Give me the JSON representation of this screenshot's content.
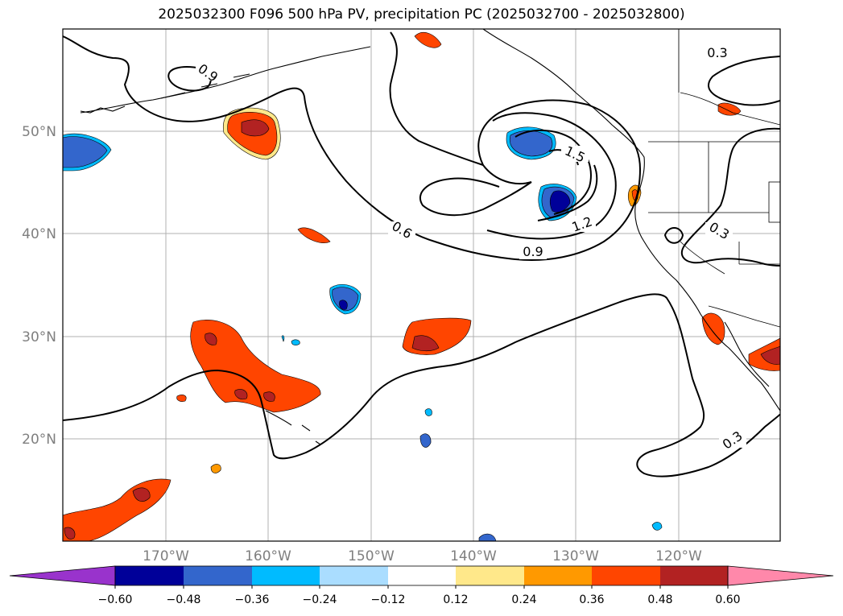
{
  "title": "2025032300 F096 500 hPa PV, precipitation PC (2025032700 - 2025032800)",
  "map": {
    "lat_labels": [
      "50°N",
      "40°N",
      "30°N",
      "20°N"
    ],
    "lon_labels": [
      "170°W",
      "160°W",
      "150°W",
      "140°W",
      "130°W",
      "120°W"
    ],
    "contour_labels": [
      "0.9",
      "0.6",
      "1.5",
      "1.2",
      "0.9",
      "0.3",
      "0.3",
      "0.3"
    ]
  },
  "colorbar": {
    "ticks": [
      "−0.60",
      "−0.48",
      "−0.36",
      "−0.24",
      "−0.12",
      "0.12",
      "0.24",
      "0.36",
      "0.48",
      "0.60"
    ],
    "colors": [
      "#9933cc",
      "#000099",
      "#3366cc",
      "#00bbff",
      "#aaddff",
      "#ffffff",
      "#ffe88a",
      "#ff9900",
      "#ff4500",
      "#b22222",
      "#ff88aa"
    ]
  }
}
